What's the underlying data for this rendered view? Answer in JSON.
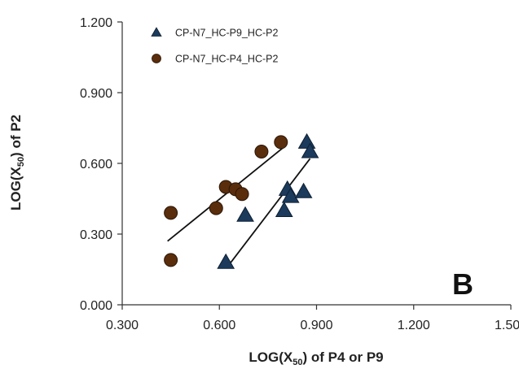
{
  "chart_data": {
    "type": "scatter",
    "panel_label": "B",
    "xlabel": {
      "prefix": "LOG(X",
      "sub": "50",
      "suffix": ") of P4 or P9"
    },
    "ylabel": {
      "prefix": "LOG(X",
      "sub": "50",
      "suffix": ") of P2"
    },
    "xlim": [
      0.3,
      1.5
    ],
    "ylim": [
      0.0,
      1.2
    ],
    "x_ticks": [
      "0.300",
      "0.600",
      "0.900",
      "1.200",
      "1.500"
    ],
    "y_ticks": [
      "0.000",
      "0.300",
      "0.600",
      "0.900",
      "1.200"
    ],
    "grid": false,
    "legend_position": "top-left",
    "series": [
      {
        "name": "CP-N7_HC-P9_HC-P2",
        "marker": "triangle",
        "color": "#1b3a5c",
        "points": [
          {
            "x": 0.62,
            "y": 0.18
          },
          {
            "x": 0.68,
            "y": 0.38
          },
          {
            "x": 0.8,
            "y": 0.4
          },
          {
            "x": 0.81,
            "y": 0.49
          },
          {
            "x": 0.82,
            "y": 0.46
          },
          {
            "x": 0.86,
            "y": 0.48
          },
          {
            "x": 0.87,
            "y": 0.69
          },
          {
            "x": 0.88,
            "y": 0.65
          }
        ],
        "trendline": {
          "x": [
            0.63,
            0.88
          ],
          "y": [
            0.17,
            0.62
          ]
        }
      },
      {
        "name": "CP-N7_HC-P4_HC-P2",
        "marker": "circle",
        "color": "#5a2d0c",
        "points": [
          {
            "x": 0.45,
            "y": 0.39
          },
          {
            "x": 0.45,
            "y": 0.19
          },
          {
            "x": 0.59,
            "y": 0.41
          },
          {
            "x": 0.62,
            "y": 0.5
          },
          {
            "x": 0.65,
            "y": 0.49
          },
          {
            "x": 0.67,
            "y": 0.47
          },
          {
            "x": 0.73,
            "y": 0.65
          },
          {
            "x": 0.79,
            "y": 0.69
          }
        ],
        "trendline": {
          "x": [
            0.44,
            0.8
          ],
          "y": [
            0.27,
            0.67
          ]
        }
      }
    ]
  }
}
